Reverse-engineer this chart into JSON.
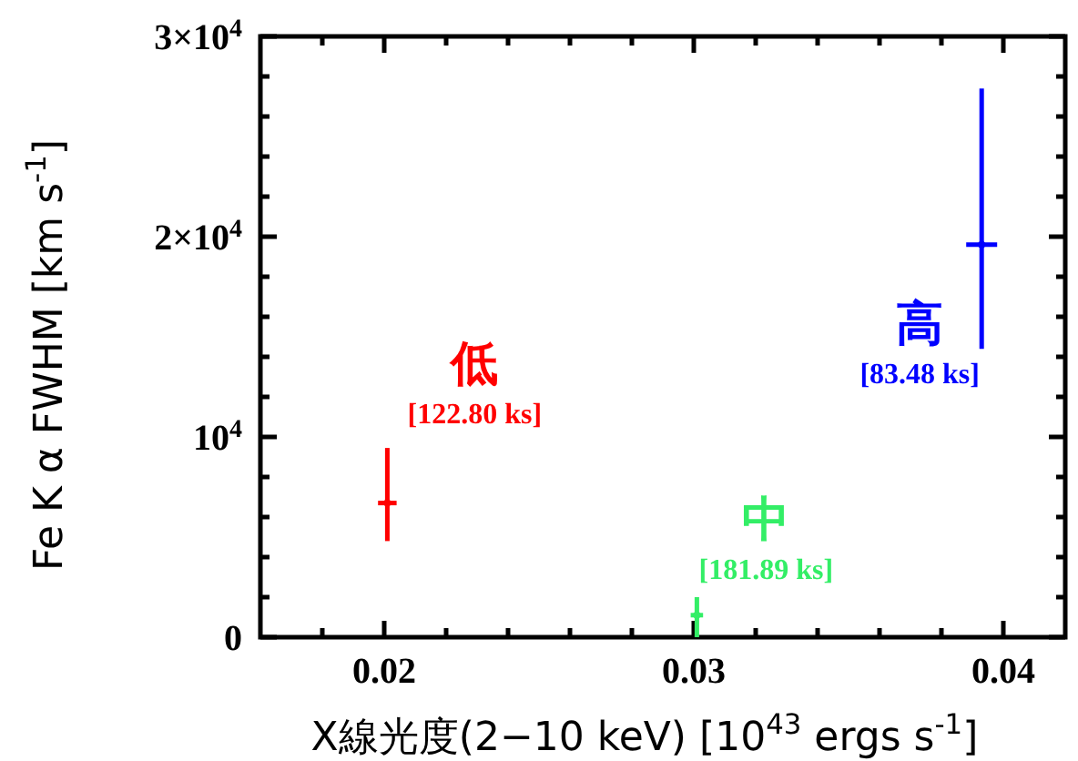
{
  "chart_data": {
    "type": "scatter",
    "xlabel": "X線光度(2−10 keV) [10$^{43}$ ergs s$^{-1}$]",
    "ylabel": "Fe K α FWHM [km s$^{-1}$]",
    "xlim": [
      0.016,
      0.042
    ],
    "xticks": [
      {
        "value": 0.018,
        "label": null
      },
      0.02,
      {
        "value": 0.022,
        "label": null
      },
      {
        "value": 0.024,
        "label": null
      },
      {
        "value": 0.026,
        "label": null
      },
      {
        "value": 0.028,
        "label": null
      },
      0.03,
      {
        "value": 0.032,
        "label": null
      },
      {
        "value": 0.034,
        "label": null
      },
      {
        "value": 0.036,
        "label": null
      },
      {
        "value": 0.038,
        "label": null
      },
      0.04
    ],
    "ylim": [
      0,
      30000
    ],
    "yticks": [
      {
        "value": 0,
        "label": "0"
      },
      {
        "value": 2000,
        "label": null
      },
      {
        "value": 4000,
        "label": null
      },
      {
        "value": 6000,
        "label": null
      },
      {
        "value": 8000,
        "label": null
      },
      {
        "value": 10000,
        "label": "10$^{4}$"
      },
      {
        "value": 12000,
        "label": null
      },
      {
        "value": 14000,
        "label": null
      },
      {
        "value": 16000,
        "label": null
      },
      {
        "value": 18000,
        "label": null
      },
      {
        "value": 20000,
        "label": "2×10$^{4}$"
      },
      {
        "value": 22000,
        "label": null
      },
      {
        "value": 24000,
        "label": null
      },
      {
        "value": 26000,
        "label": null
      },
      {
        "value": 28000,
        "label": null
      },
      {
        "value": 30000,
        "label": "3×10$^{4}$"
      }
    ],
    "grid": false,
    "series": [
      {
        "name": "低",
        "color": "#ff0000",
        "x": [
          0.0201
        ],
        "values": [
          6700
        ],
        "errors": [
          [
            4800,
            9450
          ]
        ],
        "xerrors": [
          0.0003
        ]
      },
      {
        "name": "中",
        "color": "#33ee66",
        "x": [
          0.0301
        ],
        "values": [
          1100
        ],
        "errors": [
          [
            0,
            2000
          ]
        ],
        "xerrors": [
          0.0002
        ]
      },
      {
        "name": "高",
        "color": "#0000ff",
        "x": [
          0.0393
        ],
        "values": [
          19600
        ],
        "errors": [
          [
            14400,
            27400
          ]
        ],
        "xerrors": [
          0.0005
        ]
      }
    ],
    "annotations": [
      "[122.80 ks]",
      "[181.89 ks]",
      "[83.48 ks]"
    ]
  }
}
